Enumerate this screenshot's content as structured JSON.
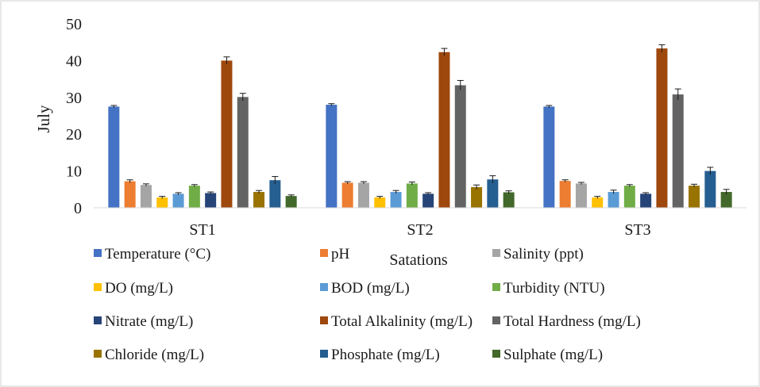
{
  "chart_data": {
    "type": "bar",
    "title": "",
    "xlabel": "Satations",
    "ylabel": "July",
    "ylim": [
      0,
      50
    ],
    "yticks": [
      "0",
      "10",
      "20",
      "30",
      "40",
      "50"
    ],
    "grid": false,
    "legend_position": "bottom",
    "categories": [
      "ST1",
      "ST2",
      "ST3"
    ],
    "series": [
      {
        "name": "Temperature (°C)",
        "color": "#4472c4",
        "values": [
          27.5,
          28.0,
          27.5
        ],
        "errors": [
          0.3,
          0.3,
          0.3
        ]
      },
      {
        "name": "pH",
        "color": "#ed7d31",
        "values": [
          7.2,
          6.8,
          7.3
        ],
        "errors": [
          0.4,
          0.3,
          0.3
        ]
      },
      {
        "name": "Salinity (ppt)",
        "color": "#a5a5a5",
        "values": [
          6.2,
          6.8,
          6.6
        ],
        "errors": [
          0.3,
          0.3,
          0.3
        ]
      },
      {
        "name": "DO (mg/L)",
        "color": "#ffc000",
        "values": [
          2.8,
          2.8,
          2.8
        ],
        "errors": [
          0.3,
          0.3,
          0.3
        ]
      },
      {
        "name": "BOD (mg/L)",
        "color": "#5b9bd5",
        "values": [
          3.8,
          4.3,
          4.3
        ],
        "errors": [
          0.3,
          0.4,
          0.5
        ]
      },
      {
        "name": "Turbidity (NTU)",
        "color": "#70ad47",
        "values": [
          6.0,
          6.6,
          6.0
        ],
        "errors": [
          0.3,
          0.4,
          0.3
        ]
      },
      {
        "name": "Nitrate (mg/L)",
        "color": "#264478",
        "values": [
          4.0,
          3.8,
          3.8
        ],
        "errors": [
          0.3,
          0.3,
          0.3
        ]
      },
      {
        "name": "Total Alkalinity (mg/L)",
        "color": "#9e480e",
        "values": [
          40.0,
          42.3,
          43.3
        ],
        "errors": [
          1.0,
          1.0,
          1.0
        ]
      },
      {
        "name": "Total Hardness (mg/L)",
        "color": "#636363",
        "values": [
          30.1,
          33.3,
          30.8
        ],
        "errors": [
          1.0,
          1.3,
          1.5
        ]
      },
      {
        "name": "Chloride (mg/L)",
        "color": "#997300",
        "values": [
          4.3,
          5.6,
          6.0
        ],
        "errors": [
          0.4,
          0.6,
          0.4
        ]
      },
      {
        "name": "Phosphate (mg/L)",
        "color": "#255e91",
        "values": [
          7.5,
          7.7,
          10.0
        ],
        "errors": [
          1.0,
          1.0,
          1.0
        ]
      },
      {
        "name": "Sulphate (mg/L)",
        "color": "#43682b",
        "values": [
          3.2,
          4.2,
          4.3
        ],
        "errors": [
          0.3,
          0.4,
          0.7
        ]
      }
    ]
  }
}
